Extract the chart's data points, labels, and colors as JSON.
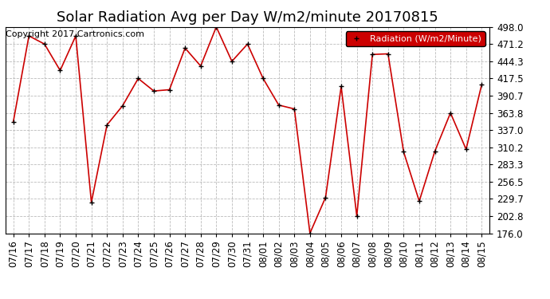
{
  "title": "Solar Radiation Avg per Day W/m2/minute 20170815",
  "copyright": "Copyright 2017 Cartronics.com",
  "legend_label": "Radiation (W/m2/Minute)",
  "dates": [
    "07/16",
    "07/17",
    "07/18",
    "07/19",
    "07/20",
    "07/21",
    "07/22",
    "07/23",
    "07/24",
    "07/25",
    "07/26",
    "07/27",
    "07/28",
    "07/29",
    "07/30",
    "07/31",
    "08/01",
    "08/02",
    "08/03",
    "08/04",
    "08/05",
    "08/06",
    "08/07",
    "08/08",
    "08/09",
    "08/10",
    "08/11",
    "08/12",
    "08/13",
    "08/14",
    "08/15"
  ],
  "values": [
    350.0,
    484.0,
    471.2,
    430.0,
    484.0,
    224.0,
    345.0,
    375.0,
    417.5,
    398.0,
    400.0,
    465.0,
    437.0,
    498.0,
    444.3,
    471.2,
    417.5,
    376.0,
    370.0,
    176.0,
    232.0,
    405.0,
    202.8,
    455.0,
    456.0,
    303.0,
    226.0,
    304.0,
    363.8,
    307.0,
    408.0
  ],
  "ylim": [
    176.0,
    498.0
  ],
  "yticks": [
    176.0,
    202.8,
    229.7,
    256.5,
    283.3,
    310.2,
    337.0,
    363.8,
    390.7,
    417.5,
    444.3,
    471.2,
    498.0
  ],
  "line_color": "#cc0000",
  "marker_color": "black",
  "background_color": "#ffffff",
  "grid_color": "#aaaaaa",
  "legend_bg": "#cc0000",
  "legend_text_color": "#ffffff",
  "title_fontsize": 13,
  "tick_fontsize": 8.5,
  "copyright_fontsize": 8
}
